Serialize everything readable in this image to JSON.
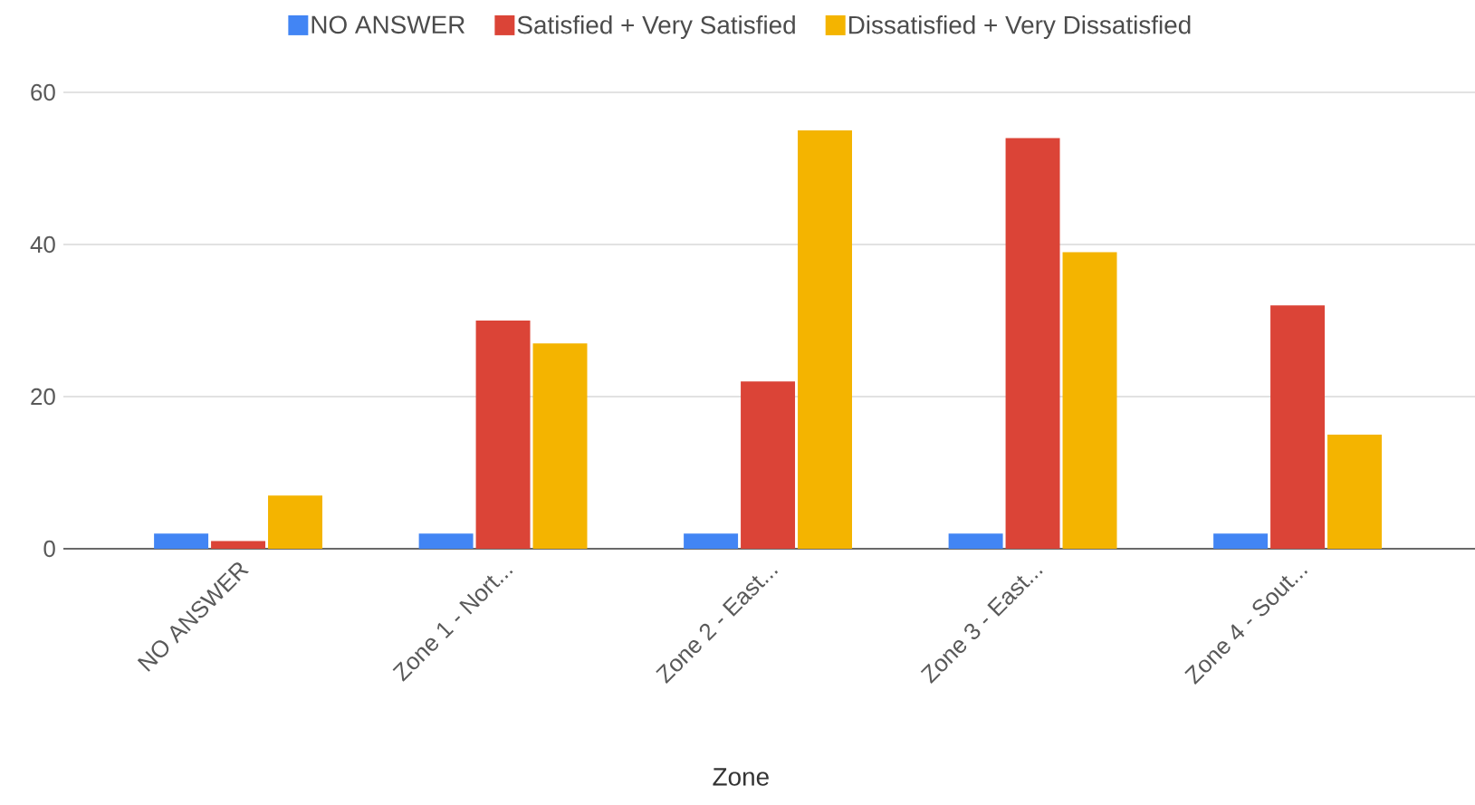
{
  "chart_data": {
    "type": "bar",
    "xlabel": "Zone",
    "categories": [
      "NO ANSWER",
      "Zone 1 - Nort...",
      "Zone 2 - East...",
      "Zone 3 - East...",
      "Zone 4 - Sout..."
    ],
    "series": [
      {
        "name": "NO ANSWER",
        "color": "#4285f4",
        "values": [
          2,
          2,
          2,
          2,
          2
        ]
      },
      {
        "name": "Satisfied + Very Satisfied",
        "color": "#db4437",
        "values": [
          1,
          30,
          22,
          54,
          32
        ]
      },
      {
        "name": "Dissatisfied + Very Dissatisfied",
        "color": "#f4b400",
        "values": [
          7,
          27,
          55,
          39,
          15
        ]
      }
    ],
    "ylim": [
      0,
      60
    ],
    "yticks": [
      0,
      20,
      40,
      60
    ],
    "grid": "y",
    "legend": "top"
  }
}
